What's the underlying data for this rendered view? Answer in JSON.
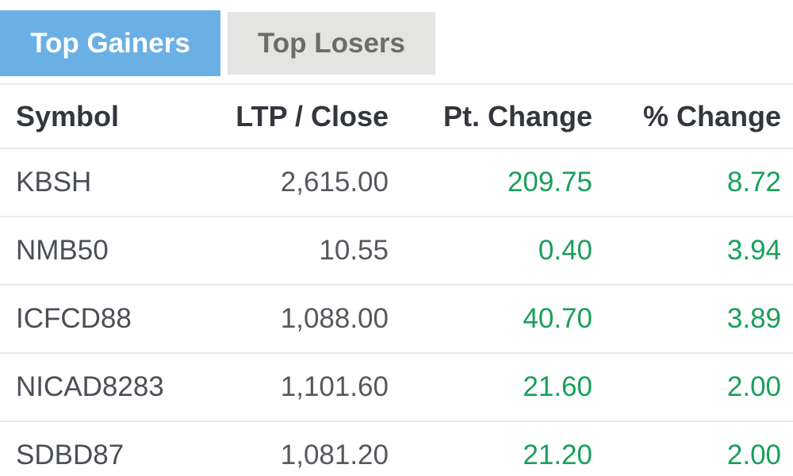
{
  "tabs": [
    {
      "label": "Top Gainers",
      "active": true
    },
    {
      "label": "Top Losers",
      "active": false
    }
  ],
  "table": {
    "columns": [
      "Symbol",
      "LTP / Close",
      "Pt. Change",
      "% Change"
    ],
    "rows": [
      {
        "symbol": "KBSH",
        "ltp_close": "2,615.00",
        "pt_change": "209.75",
        "pct_change": "8.72"
      },
      {
        "symbol": "NMB50",
        "ltp_close": "10.55",
        "pt_change": "0.40",
        "pct_change": "3.94"
      },
      {
        "symbol": "ICFCD88",
        "ltp_close": "1,088.00",
        "pt_change": "40.70",
        "pct_change": "3.89"
      },
      {
        "symbol": "NICAD8283",
        "ltp_close": "1,101.60",
        "pt_change": "21.60",
        "pct_change": "2.00"
      },
      {
        "symbol": "SDBD87",
        "ltp_close": "1,081.20",
        "pt_change": "21.20",
        "pct_change": "2.00"
      }
    ]
  },
  "colors": {
    "active_tab_bg": "#6ab0e5",
    "active_tab_text": "#ffffff",
    "inactive_tab_bg": "#e4e4e3",
    "inactive_tab_text": "#6f6b66",
    "header_text": "#33373d",
    "symbol_text": "#4b4f55",
    "value_text": "#55585d",
    "positive_value": "#18a05a",
    "row_border": "#e7e9ea"
  }
}
